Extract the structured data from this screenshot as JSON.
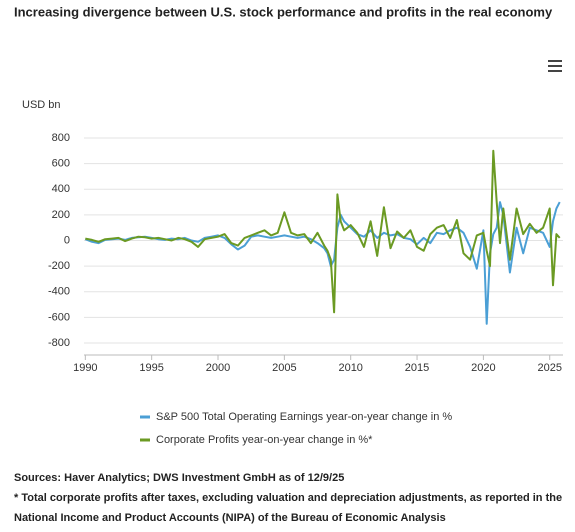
{
  "chart_data": {
    "type": "line",
    "title": "Increasing divergence between U.S. stock performance and profits in the real economy",
    "y_axis_label": "USD bn",
    "x": [
      1990,
      1990.5,
      1991,
      1991.5,
      1992,
      1992.5,
      1993,
      1993.5,
      1994,
      1994.5,
      1995,
      1995.5,
      1996,
      1996.5,
      1997,
      1997.5,
      1998,
      1998.5,
      1999,
      1999.5,
      2000,
      2000.5,
      2001,
      2001.5,
      2002,
      2002.5,
      2003,
      2003.5,
      2004,
      2004.5,
      2005,
      2005.5,
      2006,
      2006.5,
      2007,
      2007.5,
      2008,
      2008.25,
      2008.5,
      2008.75,
      2009,
      2009.25,
      2009.5,
      2010,
      2010.5,
      2011,
      2011.5,
      2012,
      2012.5,
      2013,
      2013.5,
      2014,
      2014.5,
      2015,
      2015.5,
      2016,
      2016.5,
      2017,
      2017.5,
      2018,
      2018.5,
      2019,
      2019.5,
      2020,
      2020.25,
      2020.5,
      2020.75,
      2021,
      2021.25,
      2021.5,
      2022,
      2022.5,
      2023,
      2023.5,
      2024,
      2024.5,
      2025,
      2025.25,
      2025.5,
      2025.75
    ],
    "series": [
      {
        "name": "S&P 500 Total Operating Earnings year-on-year change in %",
        "color": "#4b9fd5",
        "values": [
          10,
          -10,
          -20,
          5,
          10,
          15,
          5,
          20,
          25,
          30,
          20,
          10,
          5,
          15,
          10,
          20,
          0,
          -10,
          20,
          30,
          40,
          20,
          -30,
          -70,
          -40,
          30,
          40,
          30,
          20,
          30,
          40,
          30,
          20,
          30,
          10,
          -20,
          -60,
          -100,
          -200,
          -150,
          100,
          200,
          150,
          100,
          50,
          30,
          80,
          20,
          60,
          40,
          50,
          20,
          10,
          -30,
          20,
          -20,
          60,
          50,
          80,
          100,
          60,
          -50,
          -220,
          80,
          -650,
          -100,
          50,
          100,
          300,
          200,
          -250,
          100,
          -100,
          100,
          80,
          60,
          -50,
          150,
          250,
          300
        ]
      },
      {
        "name": "Corporate Profits year-on-year change in %*",
        "color": "#6b9a23",
        "values": [
          15,
          5,
          -10,
          10,
          15,
          20,
          -5,
          15,
          30,
          25,
          15,
          20,
          10,
          0,
          20,
          10,
          -10,
          -50,
          10,
          20,
          30,
          50,
          -20,
          -40,
          20,
          40,
          60,
          80,
          40,
          60,
          220,
          60,
          40,
          50,
          -20,
          60,
          -40,
          -80,
          -150,
          -560,
          360,
          150,
          80,
          120,
          60,
          -50,
          150,
          -120,
          260,
          -60,
          70,
          20,
          80,
          -50,
          -80,
          50,
          100,
          120,
          20,
          160,
          -100,
          -150,
          40,
          60,
          -80,
          -200,
          700,
          300,
          -20,
          250,
          -150,
          250,
          50,
          130,
          60,
          100,
          250,
          -350,
          50,
          20
        ]
      }
    ],
    "xlim": [
      1989.9,
      2026.0
    ],
    "xticks": [
      1990,
      1995,
      2000,
      2005,
      2010,
      2015,
      2020,
      2025
    ],
    "ylim": [
      -800,
      800
    ],
    "yticks": [
      -800,
      -600,
      -400,
      -200,
      0,
      200,
      400,
      600,
      800
    ],
    "grid": true,
    "notes": [
      "Sources: Haver Analytics; DWS Investment GmbH as of 12/9/25",
      "* Total corporate profits after taxes, excluding valuation and depreciation adjustments, as reported in the National Income and Product Accounts (NIPA) of the Bureau of Economic Analysis"
    ]
  }
}
